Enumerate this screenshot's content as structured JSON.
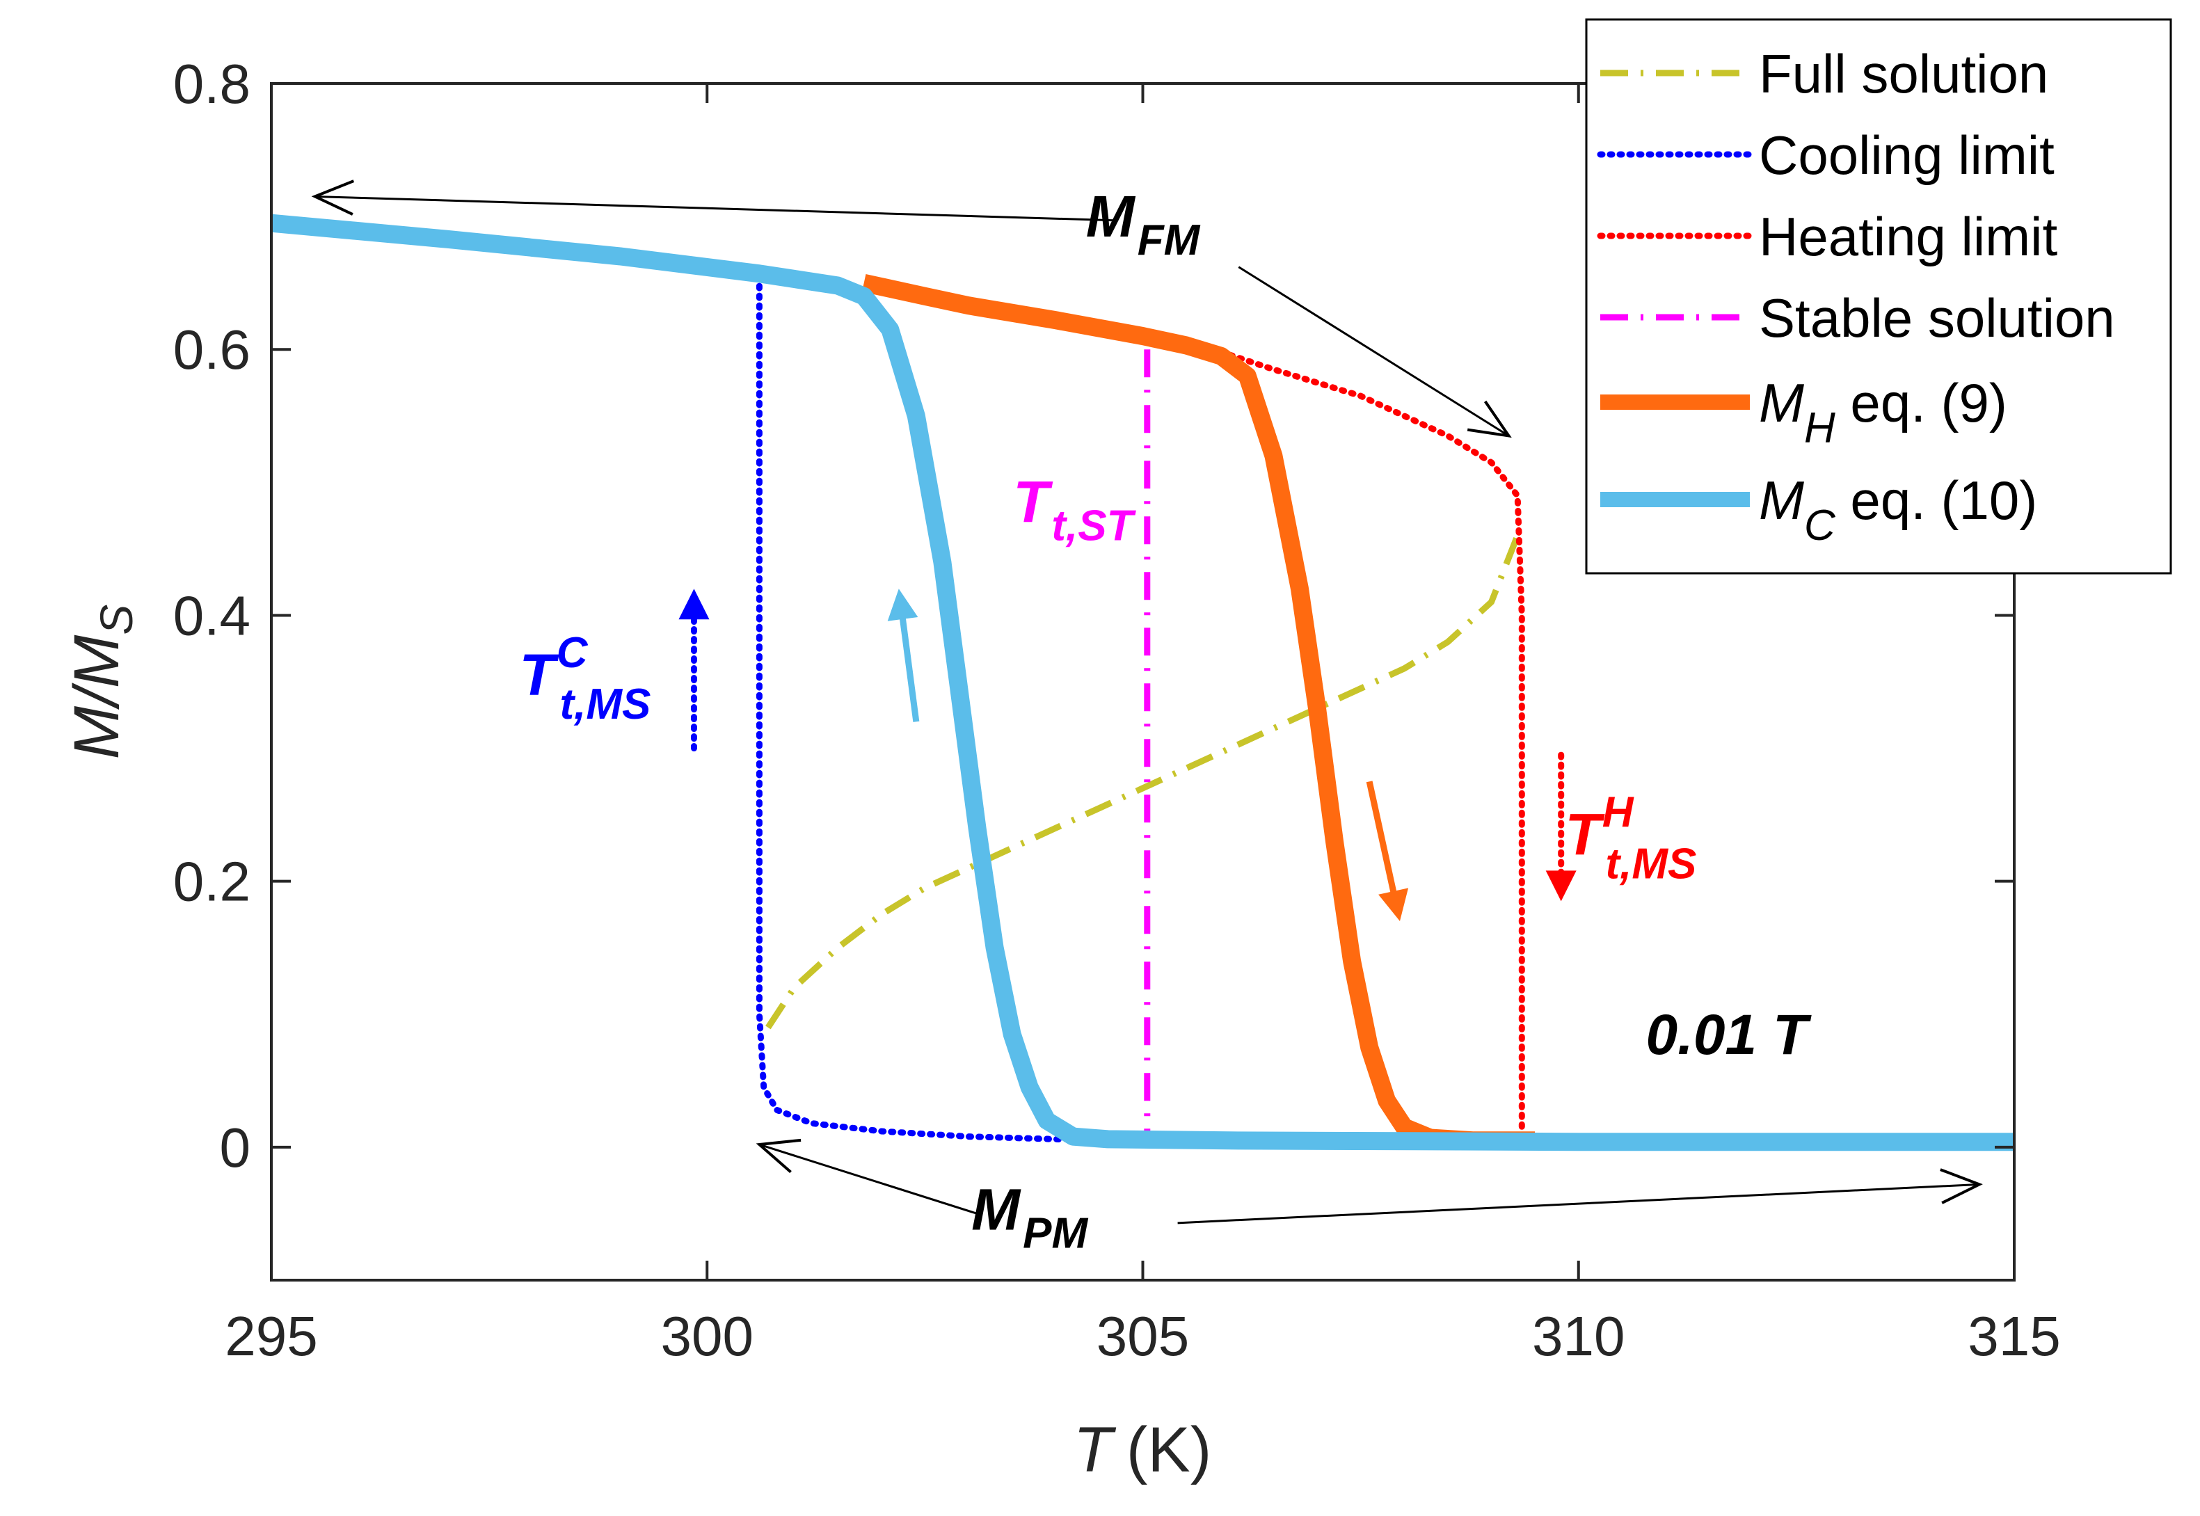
{
  "chart_data": {
    "type": "line",
    "title": "",
    "xlabel": "T",
    "xlabel_unit": "(K)",
    "ylabel": "M/M",
    "ylabel_sub": "S",
    "xlim": [
      295,
      315
    ],
    "ylim": [
      -0.1,
      0.8
    ],
    "xticks": [
      295,
      300,
      305,
      310,
      315
    ],
    "xtick_labels": [
      "295",
      "300",
      "305",
      "310",
      "315"
    ],
    "yticks": [
      0,
      0.2,
      0.4,
      0.6,
      0.8
    ],
    "ytick_labels": [
      "0",
      "0.2",
      "0.4",
      "0.6",
      "0.8"
    ],
    "grid": false,
    "legend_position": "top-right",
    "series": [
      {
        "name": "Full solution",
        "label_main": "Full solution",
        "label_sub": "",
        "color": "#C8C42A",
        "style": "dashdot",
        "points": [
          [
            300.7,
            0.09
          ],
          [
            301.0,
            0.12
          ],
          [
            301.5,
            0.15
          ],
          [
            302.0,
            0.175
          ],
          [
            302.5,
            0.195
          ],
          [
            303.0,
            0.21
          ],
          [
            303.5,
            0.225
          ],
          [
            304.0,
            0.24
          ],
          [
            304.5,
            0.255
          ],
          [
            305.0,
            0.27
          ],
          [
            305.5,
            0.285
          ],
          [
            306.0,
            0.3
          ],
          [
            306.5,
            0.315
          ],
          [
            307.0,
            0.33
          ],
          [
            307.5,
            0.345
          ],
          [
            308.0,
            0.36
          ],
          [
            308.5,
            0.38
          ],
          [
            309.0,
            0.41
          ],
          [
            309.3,
            0.46
          ]
        ]
      },
      {
        "name": "Cooling limit",
        "label_main": "Cooling limit",
        "label_sub": "",
        "color": "#0000FF",
        "style": "dotted",
        "points": [
          [
            300.6,
            0.655
          ],
          [
            300.6,
            0.55
          ],
          [
            300.6,
            0.3
          ],
          [
            300.6,
            0.1
          ],
          [
            300.65,
            0.045
          ],
          [
            300.8,
            0.028
          ],
          [
            301.2,
            0.018
          ],
          [
            302.0,
            0.012
          ],
          [
            303.0,
            0.008
          ],
          [
            304.0,
            0.006
          ],
          [
            305.0,
            0.005
          ]
        ]
      },
      {
        "name": "Heating limit",
        "label_main": "Heating limit",
        "label_sub": "",
        "color": "#FF0000",
        "style": "dotted",
        "points": [
          [
            305.9,
            0.598
          ],
          [
            306.5,
            0.585
          ],
          [
            307.0,
            0.575
          ],
          [
            307.5,
            0.565
          ],
          [
            308.0,
            0.55
          ],
          [
            308.5,
            0.535
          ],
          [
            309.0,
            0.515
          ],
          [
            309.3,
            0.49
          ],
          [
            309.35,
            0.4
          ],
          [
            309.35,
            0.2
          ],
          [
            309.35,
            0.01
          ]
        ]
      },
      {
        "name": "Stable solution",
        "label_main": "Stable solution",
        "label_sub": "",
        "color": "#FF00FF",
        "style": "dashdot",
        "points": [
          [
            305.05,
            0.6
          ],
          [
            305.05,
            0.01
          ]
        ]
      },
      {
        "name": "M_H eq. (9)",
        "label_main": "M",
        "label_sub": "H",
        "label_rest": " eq. (9)",
        "color": "#FF6A10",
        "style": "solid-thick",
        "points": [
          [
            301.8,
            0.65
          ],
          [
            302.5,
            0.64
          ],
          [
            303.0,
            0.633
          ],
          [
            304.0,
            0.622
          ],
          [
            305.0,
            0.61
          ],
          [
            305.5,
            0.603
          ],
          [
            305.9,
            0.595
          ],
          [
            306.2,
            0.58
          ],
          [
            306.5,
            0.52
          ],
          [
            306.8,
            0.42
          ],
          [
            307.0,
            0.33
          ],
          [
            307.2,
            0.23
          ],
          [
            307.4,
            0.14
          ],
          [
            307.6,
            0.075
          ],
          [
            307.8,
            0.035
          ],
          [
            308.0,
            0.015
          ],
          [
            308.3,
            0.007
          ],
          [
            308.8,
            0.005
          ],
          [
            309.5,
            0.005
          ]
        ]
      },
      {
        "name": "M_C eq. (10)",
        "label_main": "M",
        "label_sub": "C",
        "label_rest": " eq. (10)",
        "color": "#5BBDEA",
        "style": "solid-thick",
        "points": [
          [
            295,
            0.695
          ],
          [
            297,
            0.683
          ],
          [
            299,
            0.67
          ],
          [
            300.6,
            0.657
          ],
          [
            301.5,
            0.648
          ],
          [
            301.8,
            0.64
          ],
          [
            302.1,
            0.615
          ],
          [
            302.4,
            0.55
          ],
          [
            302.7,
            0.44
          ],
          [
            302.9,
            0.34
          ],
          [
            303.1,
            0.24
          ],
          [
            303.3,
            0.15
          ],
          [
            303.5,
            0.085
          ],
          [
            303.7,
            0.045
          ],
          [
            303.9,
            0.02
          ],
          [
            304.2,
            0.008
          ],
          [
            304.6,
            0.006
          ],
          [
            306,
            0.005
          ],
          [
            310,
            0.004
          ],
          [
            315,
            0.004
          ]
        ]
      }
    ],
    "annotations": [
      {
        "name": "mfm-label",
        "main": "M",
        "sub": "FM",
        "sup": "",
        "x": 305.0,
        "y": 0.685,
        "color": "#000000"
      },
      {
        "name": "mpm-label",
        "main": "M",
        "sub": "PM",
        "sup": "",
        "x": 303.7,
        "y": -0.062,
        "color": "#000000"
      },
      {
        "name": "t-st-label",
        "main": "T",
        "sub": "t,ST",
        "sup": "",
        "x": 304.2,
        "y": 0.47,
        "color": "#FF00FF"
      },
      {
        "name": "t-c-label",
        "main": "T",
        "sub": "t,MS",
        "sup": "C",
        "x": 298.6,
        "y": 0.34,
        "color": "#0000FF"
      },
      {
        "name": "t-h-label",
        "main": "T",
        "sub": "t,MS",
        "sup": "H",
        "x": 310.6,
        "y": 0.22,
        "color": "#FF0000"
      },
      {
        "name": "field-label",
        "main": "0.01 T",
        "sub": "",
        "sup": "",
        "x": 311.7,
        "y": 0.07,
        "color": "#000000"
      }
    ],
    "arrows": [
      {
        "name": "arrow-mfm-left",
        "color": "#000000",
        "from": [
          304.7,
          0.697
        ],
        "to": [
          295.5,
          0.715
        ],
        "style": "thin"
      },
      {
        "name": "arrow-mfm-right",
        "color": "#000000",
        "from": [
          306.1,
          0.662
        ],
        "to": [
          309.2,
          0.535
        ],
        "style": "thin"
      },
      {
        "name": "arrow-mpm-left",
        "color": "#000000",
        "from": [
          303.1,
          -0.05
        ],
        "to": [
          300.6,
          0.002
        ],
        "style": "thin"
      },
      {
        "name": "arrow-mpm-right",
        "color": "#000000",
        "from": [
          305.4,
          -0.057
        ],
        "to": [
          314.6,
          -0.028
        ],
        "style": "thin"
      },
      {
        "name": "arrow-cooling-up",
        "color": "#0000FF",
        "from": [
          299.85,
          0.3
        ],
        "to": [
          299.85,
          0.42
        ],
        "style": "dotted"
      },
      {
        "name": "arrow-heating-down",
        "color": "#FF0000",
        "from": [
          309.8,
          0.295
        ],
        "to": [
          309.8,
          0.185
        ],
        "style": "dotted"
      },
      {
        "name": "arrow-mc-up",
        "color": "#5BBDEA",
        "from": [
          302.4,
          0.32
        ],
        "to": [
          302.2,
          0.42
        ],
        "style": "solid"
      },
      {
        "name": "arrow-mh-down",
        "color": "#FF6A10",
        "from": [
          307.6,
          0.275
        ],
        "to": [
          307.95,
          0.17
        ],
        "style": "solid"
      }
    ]
  }
}
